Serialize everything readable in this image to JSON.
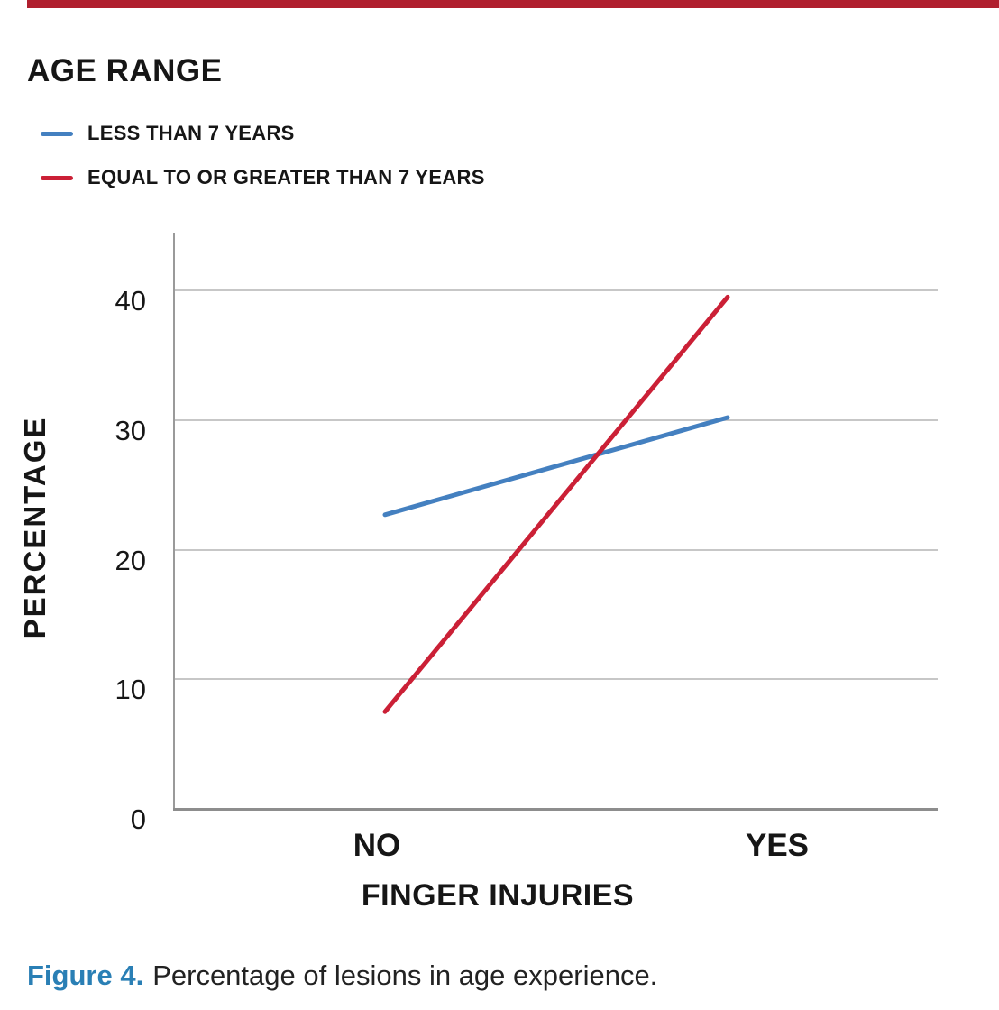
{
  "accent": {
    "top_bar_color": "#b01f2e",
    "caption_label_color": "#2a7fb5"
  },
  "legend": {
    "title": "AGE RANGE",
    "items": [
      {
        "label": "LESS THAN 7 YEARS",
        "color": "#4480c0"
      },
      {
        "label": "EQUAL TO OR GREATER THAN 7 YEARS",
        "color": "#cb2036"
      }
    ]
  },
  "chart_data": {
    "type": "line",
    "title": "",
    "categories": [
      "NO",
      "YES"
    ],
    "series": [
      {
        "name": "LESS THAN 7 YEARS",
        "color": "#4480c0",
        "values": [
          22.7,
          30.2
        ]
      },
      {
        "name": "EQUAL TO OR GREATER THAN 7 YEARS",
        "color": "#cb2036",
        "values": [
          7.5,
          39.5
        ]
      }
    ],
    "xlabel": "FINGER INJURIES",
    "ylabel": "PERCENTAGE",
    "yticks": [
      0,
      10,
      20,
      30,
      40
    ],
    "ytick_labels": [
      "0",
      "10",
      "20",
      "30",
      "40"
    ],
    "ylim": [
      0,
      44.5
    ],
    "grid": true,
    "legend_position": "top-left"
  },
  "caption": {
    "label": "Figure 4.",
    "text": "Percentage of lesions in age experience."
  }
}
